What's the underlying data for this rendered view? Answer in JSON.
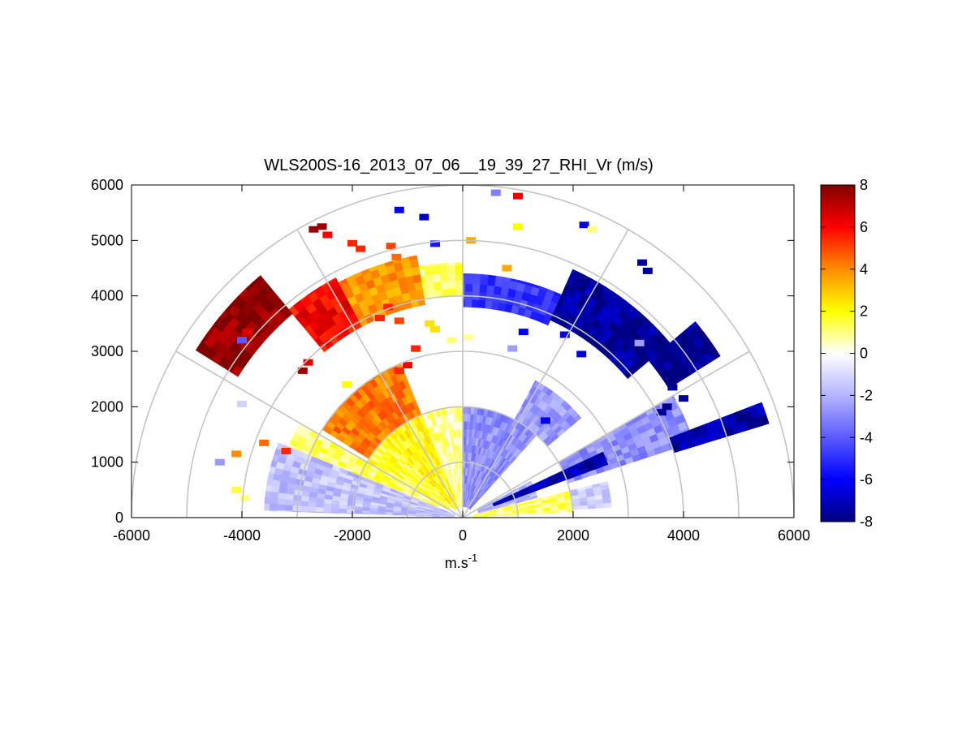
{
  "chart_data": {
    "type": "heatmap",
    "projection": "polar-rhi",
    "title": "WLS200S-16_2013_07_06__19_39_27_RHI_Vr (m/s)",
    "xlabel_base": "m.s",
    "xlabel_exp": "-1",
    "ylabel": "",
    "xlim": [
      -6000,
      6000
    ],
    "ylim": [
      0,
      6000
    ],
    "x_ticks": [
      -6000,
      -4000,
      -2000,
      0,
      2000,
      4000,
      6000
    ],
    "y_ticks": [
      0,
      1000,
      2000,
      3000,
      4000,
      5000,
      6000
    ],
    "polar_grid": {
      "range_rings": [
        1000,
        2000,
        3000,
        4000,
        5000,
        6000
      ],
      "spokes_deg": [
        0,
        30,
        60,
        90,
        120,
        150,
        180
      ]
    },
    "colorbar": {
      "min": -8,
      "max": 8,
      "ticks": [
        -8,
        -6,
        -4,
        -2,
        0,
        2,
        4,
        6,
        8
      ],
      "colors_low_to_high": [
        "#000080",
        "#0000ff",
        "#5a5aff",
        "#b4b4ff",
        "#ffffff",
        "#ffff00",
        "#ff8c00",
        "#ff0000",
        "#800000"
      ]
    },
    "regions": [
      {
        "az_from": 90,
        "az_to": 112,
        "r_from": 200,
        "r_to": 2000,
        "value": 0.8
      },
      {
        "az_from": 112,
        "az_to": 135,
        "r_from": 200,
        "r_to": 2000,
        "value": 2.0
      },
      {
        "az_from": 135,
        "az_to": 152,
        "r_from": 300,
        "r_to": 2000,
        "value": 1.5
      },
      {
        "az_from": 112,
        "az_to": 148,
        "r_from": 2000,
        "r_to": 3000,
        "value": 4.2
      },
      {
        "az_from": 150,
        "az_to": 158,
        "r_from": 500,
        "r_to": 3400,
        "value": 1.2
      },
      {
        "az_from": 158,
        "az_to": 178,
        "r_from": 150,
        "r_to": 3600,
        "value": -1.6
      },
      {
        "az_from": 90,
        "az_to": 100,
        "r_from": 4000,
        "r_to": 4600,
        "value": 1.2
      },
      {
        "az_from": 100,
        "az_to": 118,
        "r_from": 3900,
        "r_to": 4800,
        "value": 3.8
      },
      {
        "az_from": 118,
        "az_to": 130,
        "r_from": 3900,
        "r_to": 4900,
        "value": 6.0
      },
      {
        "az_from": 130,
        "az_to": 148,
        "r_from": 4800,
        "r_to": 5700,
        "value": 7.8
      },
      {
        "az_from": 48,
        "az_to": 90,
        "r_from": 200,
        "r_to": 2000,
        "value": -2.8
      },
      {
        "az_from": 40,
        "az_to": 62,
        "r_from": 2000,
        "r_to": 2800,
        "value": -2.5
      },
      {
        "az_from": 15,
        "az_to": 28,
        "r_from": 300,
        "r_to": 1400,
        "value": -2.0
      },
      {
        "az_from": 3,
        "az_to": 14,
        "r_from": 200,
        "r_to": 2000,
        "value": 1.2
      },
      {
        "az_from": 4,
        "az_to": 14,
        "r_from": 2000,
        "r_to": 2700,
        "value": -1.2
      },
      {
        "az_from": 18,
        "az_to": 30,
        "r_from": 2000,
        "r_to": 4400,
        "value": -2.8
      },
      {
        "az_from": 17,
        "az_to": 21,
        "r_from": 4000,
        "r_to": 5800,
        "value": -7.5
      },
      {
        "az_from": 20,
        "az_to": 25,
        "r_from": 600,
        "r_to": 2800,
        "value": -7.2
      },
      {
        "az_from": 66,
        "az_to": 90,
        "r_from": 3800,
        "r_to": 4400,
        "value": -4.8
      },
      {
        "az_from": 40,
        "az_to": 66,
        "r_from": 3900,
        "r_to": 4900,
        "value": -7.6
      },
      {
        "az_from": 32,
        "az_to": 40,
        "r_from": 4400,
        "r_to": 5500,
        "value": -7.8
      }
    ],
    "scatter_cells": [
      {
        "x": -2700,
        "y": 5200,
        "value": 7.6
      },
      {
        "x": -2550,
        "y": 5250,
        "value": 7.6
      },
      {
        "x": -2450,
        "y": 5100,
        "value": 6.0
      },
      {
        "x": -2000,
        "y": 4950,
        "value": 5.5
      },
      {
        "x": -1850,
        "y": 4850,
        "value": 5.5
      },
      {
        "x": -1300,
        "y": 4900,
        "value": 5.0
      },
      {
        "x": -1200,
        "y": 4700,
        "value": 4.5
      },
      {
        "x": -1350,
        "y": 3800,
        "value": 5.5
      },
      {
        "x": -1500,
        "y": 3600,
        "value": 5.5
      },
      {
        "x": -1150,
        "y": 3550,
        "value": 5.0
      },
      {
        "x": -600,
        "y": 3500,
        "value": 2.5
      },
      {
        "x": -500,
        "y": 3400,
        "value": 2.5
      },
      {
        "x": -850,
        "y": 3050,
        "value": 5.5
      },
      {
        "x": -1000,
        "y": 2750,
        "value": 6.0
      },
      {
        "x": -1150,
        "y": 2650,
        "value": 5.5
      },
      {
        "x": -2900,
        "y": 2650,
        "value": 7.5
      },
      {
        "x": -2800,
        "y": 2800,
        "value": 6.5
      },
      {
        "x": -2100,
        "y": 2400,
        "value": 2.0
      },
      {
        "x": -4000,
        "y": 3200,
        "value": -4.0
      },
      {
        "x": -3900,
        "y": 3350,
        "value": 6.5
      },
      {
        "x": -4000,
        "y": 2050,
        "value": -1.2
      },
      {
        "x": -4400,
        "y": 1000,
        "value": -2.6
      },
      {
        "x": -4100,
        "y": 1150,
        "value": 4.0
      },
      {
        "x": -3600,
        "y": 1350,
        "value": 4.5
      },
      {
        "x": -3200,
        "y": 1200,
        "value": 5.5
      },
      {
        "x": -4100,
        "y": 500,
        "value": 1.5
      },
      {
        "x": -3950,
        "y": 350,
        "value": 1.0
      },
      {
        "x": -200,
        "y": 3200,
        "value": 1.0
      },
      {
        "x": 100,
        "y": 3250,
        "value": 0.8
      },
      {
        "x": 150,
        "y": 5000,
        "value": 3.5
      },
      {
        "x": -500,
        "y": 4940,
        "value": -5.5
      },
      {
        "x": 600,
        "y": 5860,
        "value": -3.2
      },
      {
        "x": 1000,
        "y": 5800,
        "value": 6.2
      },
      {
        "x": 1000,
        "y": 5250,
        "value": 2.0
      },
      {
        "x": 800,
        "y": 4500,
        "value": 3.5
      },
      {
        "x": -1150,
        "y": 5550,
        "value": -6.2
      },
      {
        "x": -700,
        "y": 5420,
        "value": -7.0
      },
      {
        "x": 2200,
        "y": 5280,
        "value": -6.5
      },
      {
        "x": 2350,
        "y": 5200,
        "value": 1.0
      },
      {
        "x": 3250,
        "y": 4600,
        "value": -7.6
      },
      {
        "x": 3350,
        "y": 4450,
        "value": -7.6
      },
      {
        "x": 1100,
        "y": 3350,
        "value": -6.0
      },
      {
        "x": 1850,
        "y": 3300,
        "value": -6.5
      },
      {
        "x": 2150,
        "y": 2950,
        "value": -6.5
      },
      {
        "x": 3200,
        "y": 3150,
        "value": -2.5
      },
      {
        "x": 1500,
        "y": 1750,
        "value": -6.0
      },
      {
        "x": 900,
        "y": 3050,
        "value": -2.5
      },
      {
        "x": 3800,
        "y": 2350,
        "value": -7.6
      },
      {
        "x": 4000,
        "y": 2150,
        "value": -7.6
      },
      {
        "x": 3700,
        "y": 2000,
        "value": -7.6
      },
      {
        "x": 3600,
        "y": 1900,
        "value": -7.6
      }
    ]
  }
}
